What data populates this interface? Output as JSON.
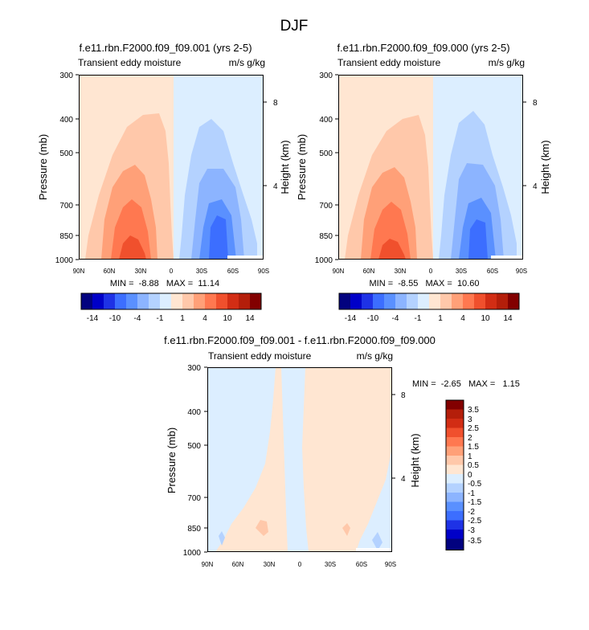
{
  "figure": {
    "title": "DJF"
  },
  "colors": {
    "neg": [
      "#02027f",
      "#0000c8",
      "#1e32e6",
      "#3c6eff",
      "#5a90ff",
      "#8cb4ff",
      "#b4d2ff",
      "#dceeff"
    ],
    "pos": [
      "#ffe6d2",
      "#ffc8aa",
      "#ffa078",
      "#ff7850",
      "#f0502d",
      "#d22d14",
      "#b41e0a",
      "#820000"
    ]
  },
  "chart_data": [
    {
      "type": "contour",
      "id": "p1",
      "title": "f.e11.rbn.F2000.f09_f09.001 (yrs 2-5)",
      "left_label": "Transient eddy moisture",
      "right_label": "m/s g/kg",
      "ylabel": "Pressure (mb)",
      "ylabel_right": "Height (km)",
      "x_ticks": [
        "90N",
        "60N",
        "30N",
        "0",
        "30S",
        "60S",
        "90S"
      ],
      "y_ticks": [
        "300",
        "400",
        "500",
        "700",
        "850",
        "1000"
      ],
      "height_ticks": [
        "8",
        "4"
      ],
      "stats": "MIN =  -8.88   MAX =  11.14",
      "colorbar_labels": [
        "-14",
        "-10",
        "-4",
        "-1",
        "1",
        "4",
        "10",
        "14"
      ],
      "regions": [
        {
          "level": "pos1",
          "note": "weak positive over northern hemisphere"
        },
        {
          "level": "pos2",
          "note": "center near 35N"
        },
        {
          "level": "pos3"
        },
        {
          "level": "pos4"
        },
        {
          "level": "pos5"
        },
        {
          "level": "neg1",
          "note": "weak negative over southern hemisphere"
        },
        {
          "level": "neg2",
          "note": "center near 45S"
        },
        {
          "level": "neg3"
        },
        {
          "level": "neg4"
        },
        {
          "level": "neg5"
        }
      ]
    },
    {
      "type": "contour",
      "id": "p2",
      "title": "f.e11.rbn.F2000.f09_f09.000 (yrs 2-5)",
      "left_label": "Transient eddy moisture",
      "right_label": "m/s g/kg",
      "ylabel": "Pressure (mb)",
      "ylabel_right": "Height (km)",
      "x_ticks": [
        "90N",
        "60N",
        "30N",
        "0",
        "30S",
        "60S",
        "90S"
      ],
      "y_ticks": [
        "300",
        "400",
        "500",
        "700",
        "850",
        "1000"
      ],
      "height_ticks": [
        "8",
        "4"
      ],
      "stats": "MIN =  -8.55   MAX =  10.60",
      "colorbar_labels": [
        "-14",
        "-10",
        "-4",
        "-1",
        "1",
        "4",
        "10",
        "14"
      ]
    },
    {
      "type": "contour",
      "id": "p3",
      "title": "f.e11.rbn.F2000.f09_f09.001 - f.e11.rbn.F2000.f09_f09.000",
      "left_label": "Transient eddy moisture",
      "right_label": "m/s g/kg",
      "ylabel": "Pressure (mb)",
      "ylabel_right": "Height (km)",
      "x_ticks": [
        "90N",
        "60N",
        "30N",
        "0",
        "30S",
        "60S",
        "90S"
      ],
      "y_ticks": [
        "300",
        "400",
        "500",
        "700",
        "850",
        "1000"
      ],
      "height_ticks": [
        "8",
        "4"
      ],
      "stats": "MIN =  -2.65   MAX =   1.15",
      "colorbar_labels": [
        "3.5",
        "3",
        "2.5",
        "2",
        "1.5",
        "1",
        "0.5",
        "0",
        "-0.5",
        "-1",
        "-1.5",
        "-2",
        "-2.5",
        "-3",
        "-3.5"
      ]
    }
  ]
}
